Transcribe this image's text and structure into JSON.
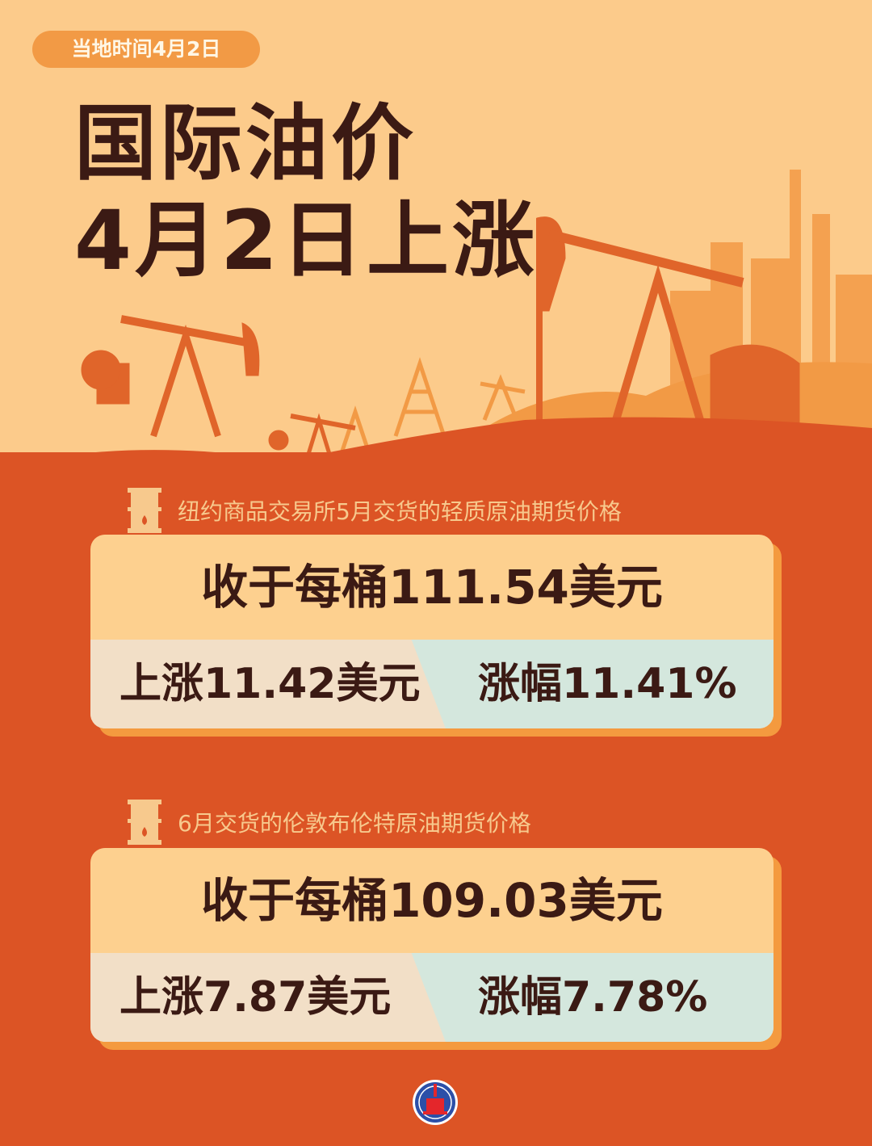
{
  "header": {
    "date_badge": "当地时间4月2日",
    "title_line1": "国际油价",
    "title_line2": "4月2日上涨"
  },
  "sections": [
    {
      "label": "纽约商品交易所5月交货的轻质原油期货价格",
      "close": "收于每桶111.54美元",
      "rise": "上涨11.42美元",
      "pct": "涨幅11.41%"
    },
    {
      "label": "6月交货的伦敦布伦特原油期货价格",
      "close": "收于每桶109.03美元",
      "rise": "上涨7.87美元",
      "pct": "涨幅7.78%"
    }
  ],
  "footer": {
    "logo": "XINHUA"
  },
  "colors": {
    "background_top": "#fccb8b",
    "background_bottom": "#dc5425",
    "text_dark": "#3b1a14",
    "accent": "#f29a45"
  },
  "icons": [
    "oil-barrel-icon",
    "oil-pump-silhouette",
    "xinhua-logo"
  ]
}
